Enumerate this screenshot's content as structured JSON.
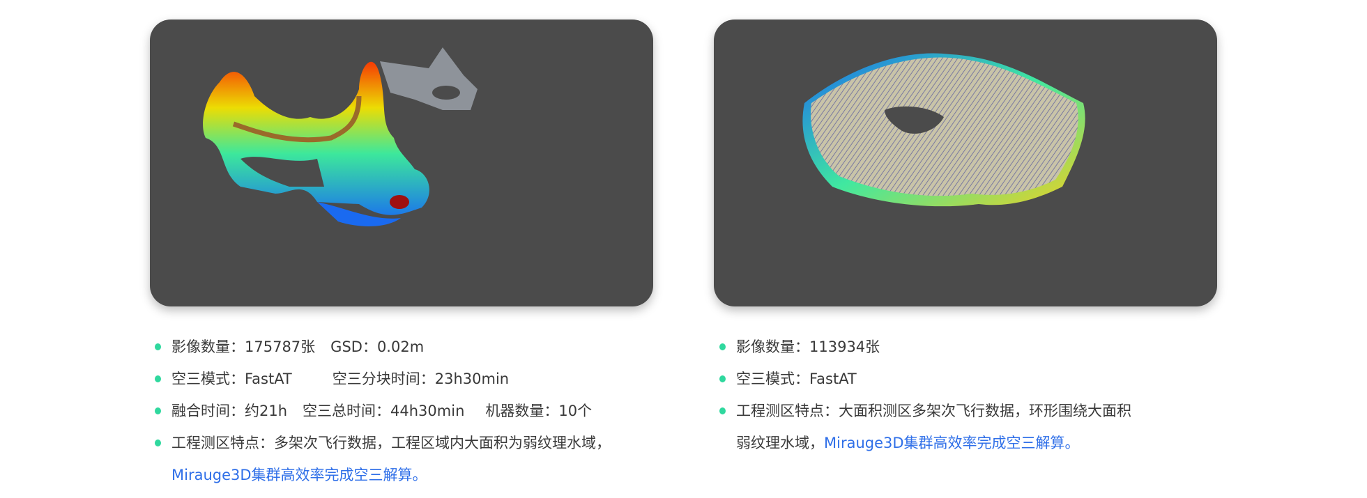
{
  "colors": {
    "card_bg": "#4b4b4b",
    "bullet": "#2fd89e",
    "link": "#2f6fe8",
    "text": "#3a3a3a"
  },
  "left": {
    "image": "point-cloud-ring-river",
    "items": [
      {
        "a": "影像数量：175787张",
        "b": "GSD：0.02m"
      },
      {
        "a": "空三模式：FastAT",
        "b": "空三分块时间：23h30min"
      },
      {
        "a": "融合时间：约21h",
        "b": "空三总时间：44h30min",
        "c": "机器数量：10个"
      },
      {
        "a": "工程测区特点：多架次飞行数据，工程区域内大面积为弱纹理水域，",
        "link": "Mirauge3D集群高效率完成空三解算。"
      }
    ]
  },
  "right": {
    "image": "point-cloud-ring-lake",
    "items": [
      {
        "a": "影像数量：113934张"
      },
      {
        "a": "空三模式：FastAT"
      },
      {
        "a": "工程测区特点：大面积测区多架次飞行数据，环形围绕大面积",
        "a2": "弱纹理水域，",
        "link": "Mirauge3D集群高效率完成空三解算。"
      }
    ]
  }
}
